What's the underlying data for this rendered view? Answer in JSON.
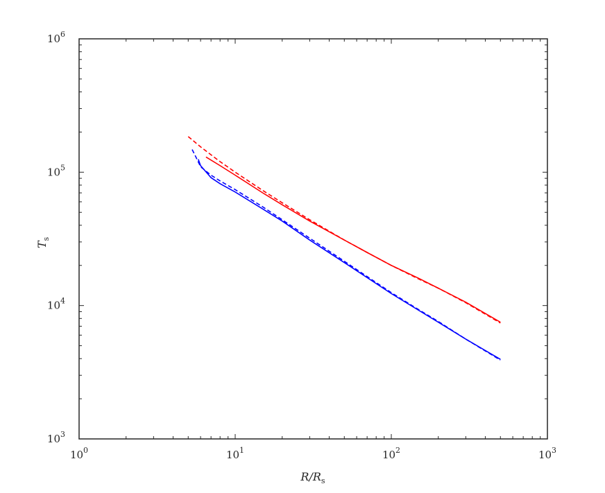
{
  "chart_data": {
    "type": "line",
    "x_scale": "log",
    "y_scale": "log",
    "xlim": [
      1,
      1000
    ],
    "ylim": [
      1000,
      1000000
    ],
    "grid": false,
    "xlabel": {
      "main": "R/R",
      "sub": "s"
    },
    "ylabel": {
      "main": "T",
      "sub": "s"
    },
    "x_ticks": [
      {
        "value": 1,
        "base": "10",
        "exp": "0"
      },
      {
        "value": 10,
        "base": "10",
        "exp": "1"
      },
      {
        "value": 100,
        "base": "10",
        "exp": "2"
      },
      {
        "value": 1000,
        "base": "10",
        "exp": "3"
      }
    ],
    "y_ticks": [
      {
        "value": 1000,
        "base": "10",
        "exp": "3"
      },
      {
        "value": 10000,
        "base": "10",
        "exp": "4"
      },
      {
        "value": 100000,
        "base": "10",
        "exp": "5"
      },
      {
        "value": 1000000,
        "base": "10",
        "exp": "6"
      }
    ],
    "series": [
      {
        "color": "#ff0000",
        "style": "dashed",
        "points": [
          [
            5.0,
            185000
          ],
          [
            6.0,
            155000
          ],
          [
            7.0,
            135000
          ],
          [
            8.0,
            120000
          ],
          [
            10.0,
            100000
          ],
          [
            15.0,
            73000
          ],
          [
            20.0,
            59000
          ],
          [
            30.0,
            44000
          ],
          [
            50.0,
            31000
          ],
          [
            70.0,
            25000
          ],
          [
            100.0,
            20000
          ],
          [
            150.0,
            15800
          ],
          [
            200.0,
            13500
          ],
          [
            300.0,
            10500
          ],
          [
            500.0,
            7400
          ]
        ]
      },
      {
        "color": "#ff0000",
        "style": "solid",
        "points": [
          [
            6.5,
            130000
          ],
          [
            8.0,
            112000
          ],
          [
            10.0,
            95000
          ],
          [
            15.0,
            70000
          ],
          [
            20.0,
            57000
          ],
          [
            30.0,
            43000
          ],
          [
            50.0,
            31000
          ],
          [
            70.0,
            25000
          ],
          [
            100.0,
            20000
          ],
          [
            150.0,
            16000
          ],
          [
            200.0,
            13500
          ],
          [
            300.0,
            10600
          ],
          [
            500.0,
            7500
          ]
        ]
      },
      {
        "color": "#0000ff",
        "style": "dashed",
        "points": [
          [
            5.3,
            148000
          ],
          [
            5.6,
            130000
          ],
          [
            6.0,
            110000
          ],
          [
            7.0,
            95000
          ],
          [
            8.0,
            86000
          ],
          [
            10.0,
            74000
          ],
          [
            15.0,
            55000
          ],
          [
            20.0,
            44000
          ],
          [
            30.0,
            32000
          ],
          [
            50.0,
            21500
          ],
          [
            70.0,
            16500
          ],
          [
            100.0,
            12500
          ],
          [
            150.0,
            9300
          ],
          [
            200.0,
            7600
          ],
          [
            300.0,
            5600
          ],
          [
            500.0,
            3900
          ]
        ]
      },
      {
        "color": "#0000ff",
        "style": "solid",
        "points": [
          [
            5.8,
            125000
          ],
          [
            6.0,
            112000
          ],
          [
            7.0,
            91000
          ],
          [
            8.0,
            82000
          ],
          [
            10.0,
            71000
          ],
          [
            15.0,
            53000
          ],
          [
            20.0,
            43000
          ],
          [
            30.0,
            31000
          ],
          [
            50.0,
            21000
          ],
          [
            70.0,
            16200
          ],
          [
            100.0,
            12300
          ],
          [
            150.0,
            9200
          ],
          [
            200.0,
            7500
          ],
          [
            300.0,
            5600
          ],
          [
            500.0,
            3950
          ]
        ]
      }
    ]
  }
}
